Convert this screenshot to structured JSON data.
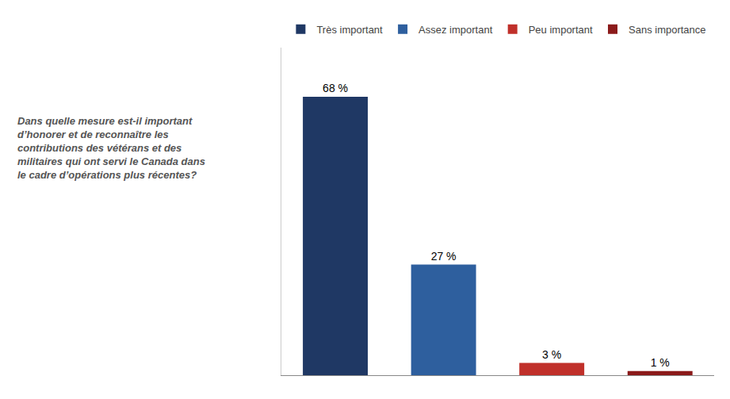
{
  "chart_data": {
    "type": "bar",
    "annotations": [
      "Dans quelle mesure est-il important\nd’honorer et de reconnaître les\ncontributions des vétérans et des\nmilitaires qui ont servi le Canada dans\nle cadre d’opérations plus récentes?"
    ],
    "categories": [
      "Très important",
      "Assez important",
      "Peu important",
      "Sans importance"
    ],
    "values": [
      68,
      27,
      3,
      1
    ],
    "value_labels": [
      "68 %",
      "27 %",
      "3 %",
      "1 %"
    ],
    "colors": [
      "#1F3864",
      "#2E5F9E",
      "#C0302A",
      "#8B1A1A"
    ],
    "data_labels": true,
    "legend": "top",
    "grid": false,
    "tick_labels": false,
    "ylim": [
      0,
      80
    ]
  }
}
